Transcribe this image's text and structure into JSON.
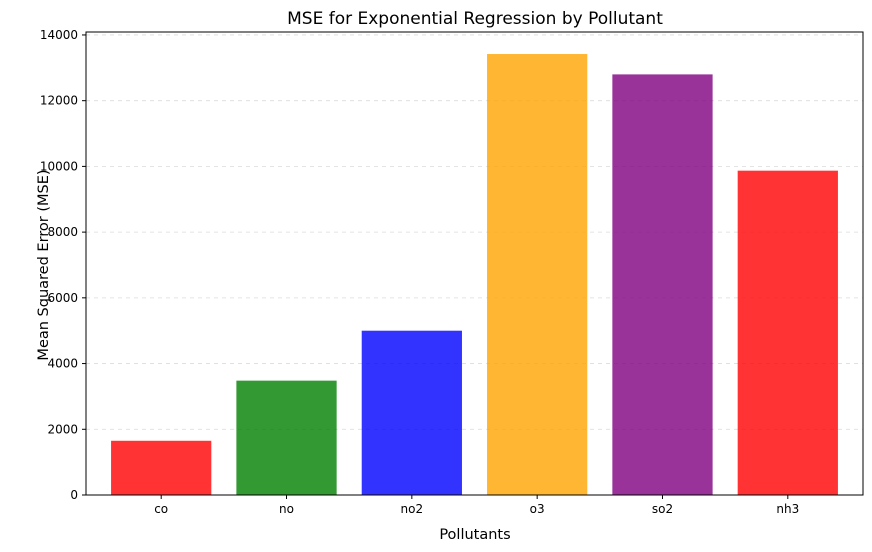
{
  "chart_data": {
    "type": "bar",
    "title": "MSE for Exponential Regression by Pollutant",
    "xlabel": "Pollutants",
    "ylabel": "Mean Squared Error (MSE)",
    "categories": [
      "co",
      "no",
      "no2",
      "o3",
      "so2",
      "nh3"
    ],
    "values": [
      1650,
      3480,
      5000,
      13420,
      12800,
      9870
    ],
    "colors": [
      "#ff0000",
      "#008000",
      "#0000ff",
      "#ffa500",
      "#800080",
      "#ff0000"
    ],
    "bar_opacity": 0.8,
    "ylim": [
      0,
      14090
    ],
    "yticks": [
      0,
      2000,
      4000,
      6000,
      8000,
      10000,
      12000,
      14000
    ],
    "ytick_labels": [
      "0",
      "2000",
      "4000",
      "6000",
      "8000",
      "10000",
      "12000",
      "14000"
    ],
    "grid": "y-dashed"
  }
}
